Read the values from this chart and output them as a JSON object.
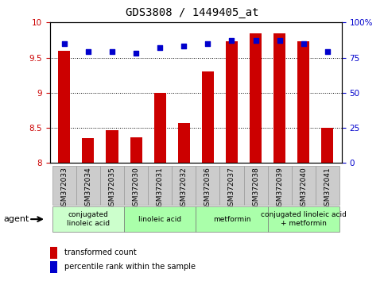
{
  "title": "GDS3808 / 1449405_at",
  "samples": [
    "GSM372033",
    "GSM372034",
    "GSM372035",
    "GSM372030",
    "GSM372031",
    "GSM372032",
    "GSM372036",
    "GSM372037",
    "GSM372038",
    "GSM372039",
    "GSM372040",
    "GSM372041"
  ],
  "transformed_count": [
    9.6,
    8.35,
    8.47,
    8.37,
    9.0,
    8.57,
    9.3,
    9.73,
    9.85,
    9.85,
    9.73,
    8.5
  ],
  "percentile_rank": [
    85,
    79,
    79,
    78,
    82,
    83,
    85,
    87,
    87,
    87,
    85,
    79
  ],
  "ylim_left": [
    8.0,
    10.0
  ],
  "ylim_right": [
    0,
    100
  ],
  "yticks_left": [
    8.0,
    8.5,
    9.0,
    9.5,
    10.0
  ],
  "yticks_right": [
    0,
    25,
    50,
    75,
    100
  ],
  "ytick_labels_right": [
    "0",
    "25",
    "50",
    "75",
    "100%"
  ],
  "bar_color": "#cc0000",
  "dot_color": "#0000cc",
  "bar_bottom": 8.0,
  "agent_groups": [
    {
      "label": "conjugated\nlinoleic acid",
      "start": 0,
      "end": 3
    },
    {
      "label": "linoleic acid",
      "start": 3,
      "end": 6
    },
    {
      "label": "metformin",
      "start": 6,
      "end": 9
    },
    {
      "label": "conjugated linoleic acid\n+ metformin",
      "start": 9,
      "end": 12
    }
  ],
  "agent_group_colors": [
    "#ccffcc",
    "#aaffaa",
    "#aaffaa",
    "#aaffaa"
  ],
  "legend_bar_label": "transformed count",
  "legend_dot_label": "percentile rank within the sample",
  "xlabel_agent": "agent",
  "title_fontsize": 10,
  "tick_fontsize": 7.5,
  "label_fontsize": 8,
  "sample_fontsize": 6.5,
  "group_fontsize": 6.5,
  "legend_fontsize": 7,
  "sample_box_color": "#cccccc",
  "sample_box_edge": "#999999"
}
